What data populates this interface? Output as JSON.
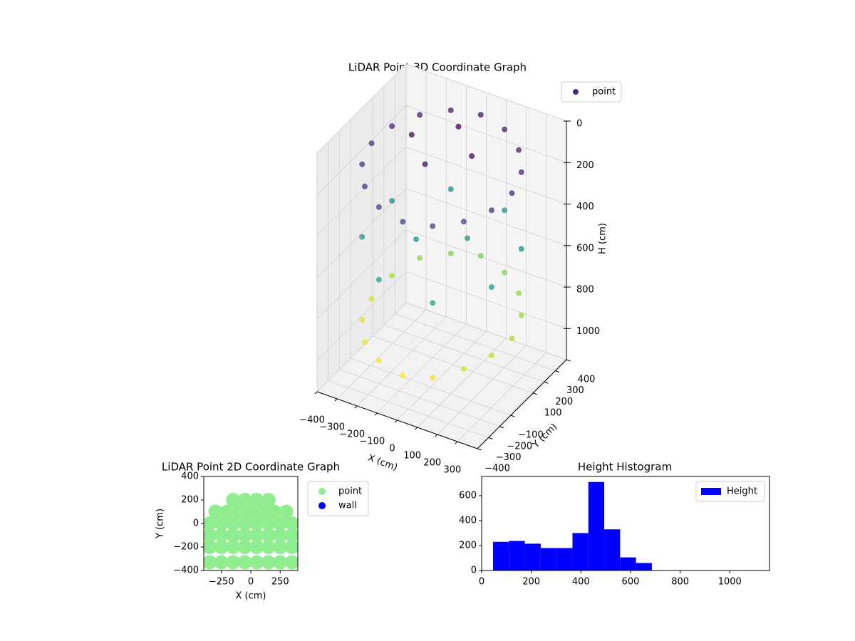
{
  "chart_data": [
    {
      "type": "scatter3d",
      "title": "LiDAR Point 3D Coordinate Graph",
      "x_label": "X (cm)",
      "y_label": "Y (cm)",
      "z_label": "H (cm)",
      "xlim": [
        -400,
        400
      ],
      "ylim": [
        -400,
        400
      ],
      "zlim": [
        0,
        1150
      ],
      "z_inverted": true,
      "xticks": [
        {
          "value": -400,
          "label": "−400"
        },
        {
          "value": -300,
          "label": "−300"
        },
        {
          "value": -200,
          "label": "−200"
        },
        {
          "value": -100,
          "label": "−100"
        },
        0,
        100,
        200,
        300
      ],
      "yticks": [
        {
          "value": -400,
          "label": "−400"
        },
        {
          "value": -300,
          "label": "−300"
        },
        {
          "value": -200,
          "label": "−200"
        },
        {
          "value": -100,
          "label": "−100"
        },
        100,
        200,
        300,
        400
      ],
      "zticks": [
        0,
        200,
        400,
        600,
        800,
        1000
      ],
      "colormap": "viridis",
      "legend": "upper right",
      "series": [
        {
          "name": "point",
          "color": "#472d7b",
          "x": [
            350,
            323,
            247,
            134,
            0,
            -134,
            -247,
            -323,
            -350,
            -323,
            -247,
            -134,
            0,
            134,
            247,
            323,
            350,
            323,
            247,
            134,
            0,
            -134,
            -247,
            -323,
            -350,
            -323,
            -247,
            -134,
            0,
            134,
            247,
            323,
            323,
            134,
            -134,
            -323,
            -323,
            -134,
            134,
            323,
            150,
            0,
            -150,
            0,
            100,
            -100
          ],
          "y": [
            0,
            134,
            247,
            323,
            350,
            323,
            247,
            134,
            0,
            -134,
            -247,
            -323,
            -350,
            -323,
            -247,
            -134,
            0,
            134,
            247,
            323,
            350,
            323,
            247,
            134,
            0,
            -134,
            -247,
            -323,
            -350,
            -323,
            -247,
            -134,
            134,
            323,
            323,
            134,
            -134,
            -323,
            -323,
            -134,
            0,
            150,
            0,
            -150,
            50,
            -50
          ],
          "h": [
            150,
            130,
            110,
            90,
            80,
            90,
            110,
            130,
            150,
            170,
            190,
            210,
            220,
            210,
            190,
            170,
            850,
            820,
            800,
            780,
            760,
            780,
            800,
            850,
            900,
            920,
            940,
            950,
            960,
            940,
            900,
            870,
            500,
            480,
            470,
            490,
            520,
            560,
            580,
            540,
            40,
            30,
            40,
            50,
            480,
            500
          ]
        }
      ]
    },
    {
      "type": "scatter",
      "title": "LiDAR Point 2D Coordinate Graph",
      "x_label": "X (cm)",
      "y_label": "Y (cm)",
      "xlim": [
        -400,
        400
      ],
      "ylim": [
        -400,
        400
      ],
      "xticks": [
        {
          "value": -250,
          "label": "−250"
        },
        0,
        250
      ],
      "yticks": [
        {
          "value": -400,
          "label": "−400"
        },
        {
          "value": -200,
          "label": "−200"
        },
        0,
        200,
        400
      ],
      "legend": "outside right",
      "series": [
        {
          "name": "point",
          "color": "#90ee90",
          "x": [
            -150,
            -50,
            50,
            150,
            -300,
            -200,
            -100,
            0,
            100,
            200,
            300,
            -350,
            -250,
            -150,
            -50,
            50,
            150,
            250,
            350,
            -350,
            -250,
            -150,
            -50,
            50,
            150,
            250,
            350,
            -350,
            -250,
            -150,
            -50,
            50,
            150,
            250,
            350,
            -350,
            -250,
            -150,
            -50,
            50,
            150,
            250,
            350
          ],
          "y": [
            200,
            200,
            200,
            200,
            100,
            100,
            100,
            100,
            100,
            100,
            100,
            0,
            0,
            0,
            0,
            0,
            0,
            0,
            0,
            -100,
            -100,
            -100,
            -100,
            -100,
            -100,
            -100,
            -100,
            -200,
            -200,
            -200,
            -200,
            -200,
            -200,
            -200,
            -200,
            -330,
            -330,
            -330,
            -330,
            -330,
            -330,
            -330,
            -330
          ]
        },
        {
          "name": "wall",
          "color": "#0000ff",
          "x": [],
          "y": []
        }
      ]
    },
    {
      "type": "histogram",
      "title": "Height Histogram",
      "bins": [
        46,
        110,
        174,
        238,
        302,
        366,
        430,
        494,
        558,
        622,
        686
      ],
      "counts": [
        230,
        237,
        215,
        180,
        180,
        300,
        710,
        330,
        105,
        60
      ],
      "name": "Height",
      "color": "#0000ff",
      "xlim": [
        0,
        1160
      ],
      "ylim": [
        0,
        754
      ],
      "xticks": [
        0,
        200,
        400,
        600,
        800,
        1000
      ],
      "yticks": [
        0,
        200,
        400,
        600
      ],
      "legend": "upper right"
    }
  ]
}
